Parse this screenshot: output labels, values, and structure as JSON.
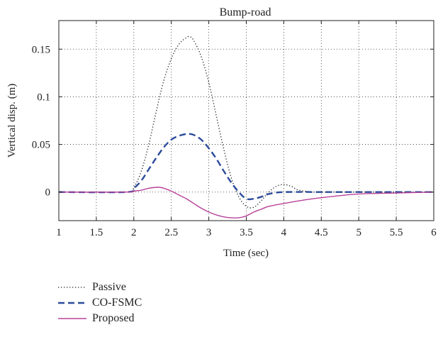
{
  "chart_data": {
    "type": "line",
    "title": "Bump-road",
    "xlabel": "Time (sec)",
    "ylabel": "Vertical disp. (m)",
    "xlim": [
      1,
      6
    ],
    "ylim": [
      -0.03,
      0.18
    ],
    "xticks": [
      1,
      1.5,
      2,
      2.5,
      3,
      3.5,
      4,
      4.5,
      5,
      5.5,
      6
    ],
    "xtick_labels": [
      "1",
      "1.5",
      "2",
      "2.5",
      "3",
      "3.5",
      "4",
      "4.5",
      "5",
      "5.5",
      "6"
    ],
    "yticks": [
      0,
      0.05,
      0.1,
      0.15
    ],
    "ytick_labels": [
      "0",
      "0.05",
      "0.1",
      "0.15"
    ],
    "grid": true,
    "legend_position": "below",
    "series": [
      {
        "name": "Passive",
        "color": "#222222",
        "style": "dotted",
        "x": [
          1,
          1.9,
          2.0,
          2.1,
          2.2,
          2.3,
          2.4,
          2.5,
          2.6,
          2.7,
          2.75,
          2.8,
          2.9,
          3.0,
          3.1,
          3.2,
          3.3,
          3.4,
          3.5,
          3.6,
          3.7,
          3.8,
          3.9,
          4.0,
          4.1,
          4.2,
          4.4,
          4.6,
          5.0,
          6.0
        ],
        "y": [
          0,
          0,
          0.005,
          0.022,
          0.05,
          0.085,
          0.117,
          0.14,
          0.155,
          0.162,
          0.163,
          0.159,
          0.142,
          0.115,
          0.08,
          0.045,
          0.015,
          -0.005,
          -0.015,
          -0.016,
          -0.009,
          0.0,
          0.006,
          0.008,
          0.006,
          0.002,
          0.0,
          0.0,
          0.0,
          0.0
        ]
      },
      {
        "name": "CO-FSMC",
        "color": "#2b4b9b",
        "style": "dashed",
        "x": [
          1,
          1.9,
          2.0,
          2.1,
          2.2,
          2.3,
          2.4,
          2.5,
          2.6,
          2.7,
          2.75,
          2.8,
          2.9,
          3.0,
          3.1,
          3.2,
          3.3,
          3.4,
          3.5,
          3.6,
          3.7,
          3.8,
          4.0,
          4.5,
          5.0,
          6.0
        ],
        "y": [
          0,
          0,
          0.004,
          0.012,
          0.024,
          0.036,
          0.047,
          0.055,
          0.059,
          0.061,
          0.061,
          0.06,
          0.055,
          0.046,
          0.035,
          0.022,
          0.01,
          0.0,
          -0.007,
          -0.007,
          -0.005,
          -0.002,
          0.0,
          0.0,
          0.0,
          0.0
        ]
      },
      {
        "name": "Proposed",
        "color": "#b8429a",
        "style": "solid",
        "x": [
          1,
          1.9,
          2.0,
          2.1,
          2.2,
          2.3,
          2.35,
          2.4,
          2.5,
          2.6,
          2.7,
          2.8,
          2.9,
          3.0,
          3.1,
          3.2,
          3.3,
          3.4,
          3.5,
          3.6,
          3.7,
          3.8,
          4.0,
          4.3,
          4.6,
          5.0,
          5.5,
          6.0
        ],
        "y": [
          0,
          0,
          0.001,
          0.002,
          0.004,
          0.005,
          0.005,
          0.004,
          0.001,
          -0.003,
          -0.007,
          -0.012,
          -0.017,
          -0.021,
          -0.024,
          -0.026,
          -0.027,
          -0.027,
          -0.025,
          -0.021,
          -0.018,
          -0.015,
          -0.012,
          -0.008,
          -0.005,
          -0.002,
          -0.001,
          0.0
        ]
      }
    ]
  }
}
